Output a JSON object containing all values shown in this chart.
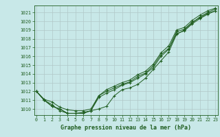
{
  "title": "Graphe pression niveau de la mer (hPa)",
  "hours": [
    0,
    1,
    2,
    3,
    4,
    5,
    6,
    7,
    8,
    9,
    10,
    11,
    12,
    13,
    14,
    15,
    16,
    17,
    18,
    19,
    20,
    21,
    22,
    23
  ],
  "line1": [
    1012.0,
    1011.1,
    1010.8,
    1010.2,
    1009.9,
    1009.8,
    1009.8,
    1010.0,
    1011.5,
    1012.0,
    1012.4,
    1012.8,
    1013.1,
    1013.7,
    1014.1,
    1014.9,
    1016.2,
    1016.9,
    1018.8,
    1019.1,
    1019.9,
    1020.4,
    1020.9,
    1021.2
  ],
  "line2": [
    1012.0,
    1011.0,
    1010.5,
    1009.8,
    1009.5,
    1009.5,
    1009.6,
    1009.8,
    1011.3,
    1011.8,
    1012.2,
    1012.7,
    1013.0,
    1013.5,
    1014.0,
    1014.7,
    1016.0,
    1016.8,
    1018.6,
    1018.9,
    1019.7,
    1020.3,
    1020.8,
    1021.2
  ],
  "line3": [
    1012.0,
    1011.0,
    1010.3,
    1010.0,
    1009.5,
    1009.5,
    1009.5,
    1009.8,
    1010.0,
    1010.3,
    1011.5,
    1012.2,
    1012.4,
    1012.8,
    1013.5,
    1014.5,
    1015.5,
    1016.5,
    1018.5,
    1019.0,
    1019.8,
    1020.5,
    1021.0,
    1021.4
  ],
  "line4": [
    1012.0,
    1011.0,
    1010.3,
    1010.0,
    1009.5,
    1009.5,
    1009.5,
    1009.8,
    1011.5,
    1012.2,
    1012.6,
    1013.0,
    1013.3,
    1013.9,
    1014.3,
    1015.1,
    1016.4,
    1017.2,
    1019.0,
    1019.3,
    1020.1,
    1020.7,
    1021.2,
    1021.5
  ],
  "line_color": "#1e5c1e",
  "bg_color": "#c8e8e8",
  "grid_color": "#b0c8c8",
  "ylim_min": 1009.3,
  "ylim_max": 1021.8,
  "yticks": [
    1010,
    1011,
    1012,
    1013,
    1014,
    1015,
    1016,
    1017,
    1018,
    1019,
    1020,
    1021
  ],
  "xlim_min": -0.3,
  "xlim_max": 23.3,
  "title_fontsize": 6.0,
  "tick_fontsize": 4.8
}
